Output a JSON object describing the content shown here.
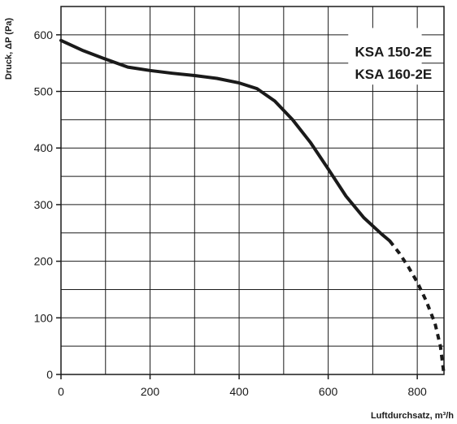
{
  "chart_data": {
    "type": "line",
    "title": "",
    "xlabel": "Luftdurchsatz, m³/h",
    "ylabel": "Druck, ΔP (Pa)",
    "xlim": [
      0,
      860
    ],
    "ylim": [
      0,
      650
    ],
    "xticks": [
      0,
      200,
      400,
      600,
      800
    ],
    "yticks": [
      0,
      100,
      200,
      300,
      400,
      500,
      600
    ],
    "grid": true,
    "grid_x_step": 100,
    "grid_y_step": 50,
    "legend_labels": [
      "KSA 150-2E",
      "KSA 160-2E"
    ],
    "legend_position": "top-right",
    "line_color": "#1a1a1a",
    "series": [
      {
        "style": "solid",
        "x": [
          0,
          50,
          100,
          150,
          200,
          250,
          300,
          350,
          400,
          440,
          480,
          520,
          560,
          600,
          640,
          680,
          720,
          738
        ],
        "y": [
          590,
          572,
          557,
          543,
          537,
          532,
          528,
          523,
          515,
          505,
          483,
          450,
          410,
          363,
          315,
          277,
          248,
          236
        ]
      },
      {
        "style": "dashed",
        "x": [
          738,
          760,
          780,
          800,
          820,
          840,
          852,
          860
        ],
        "y": [
          236,
          214,
          190,
          163,
          130,
          90,
          50,
          0
        ]
      }
    ]
  }
}
